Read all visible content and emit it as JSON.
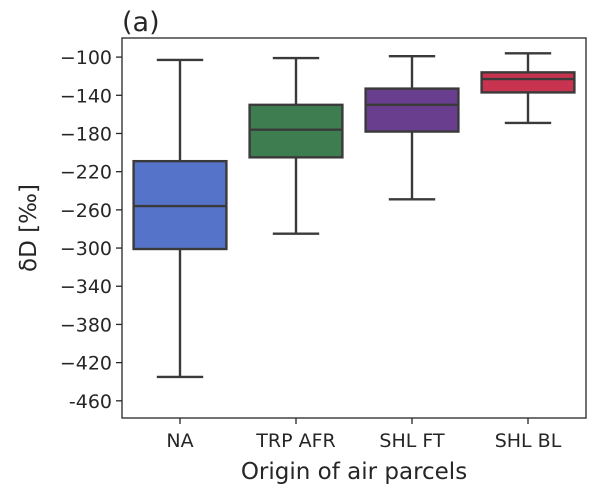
{
  "chart_data": {
    "type": "box",
    "panel_label": "(a)",
    "xlabel": "Origin of air parcels",
    "ylabel": "δD [‰]",
    "categories": [
      "NA",
      "TRP AFR",
      "SHL FT",
      "SHL BL"
    ],
    "ylim": [
      -478,
      -80
    ],
    "yticks": [
      -100,
      -140,
      -180,
      -220,
      -260,
      -300,
      -340,
      -380,
      -420,
      -460
    ],
    "ytick_labels": [
      "−100",
      "−140",
      "−180",
      "−220",
      "−260",
      "−300",
      "−340",
      "−380",
      "−420",
      "-460"
    ],
    "boxes": [
      {
        "category": "NA",
        "whisker_low": -435,
        "q1": -301,
        "median": -256,
        "q3": -209,
        "whisker_high": -103,
        "color": "#5573c8"
      },
      {
        "category": "TRP AFR",
        "whisker_low": -285,
        "q1": -205,
        "median": -176,
        "q3": -150,
        "whisker_high": -101,
        "color": "#3e7d4f"
      },
      {
        "category": "SHL FT",
        "whisker_low": -249,
        "q1": -178,
        "median": -150,
        "q3": -133,
        "whisker_high": -99,
        "color": "#6a3e8e"
      },
      {
        "category": "SHL BL",
        "whisker_low": -169,
        "q1": -137,
        "median": -123,
        "q3": -116,
        "whisker_high": -96,
        "color": "#c8334f"
      }
    ],
    "grid": false,
    "legend": false
  }
}
